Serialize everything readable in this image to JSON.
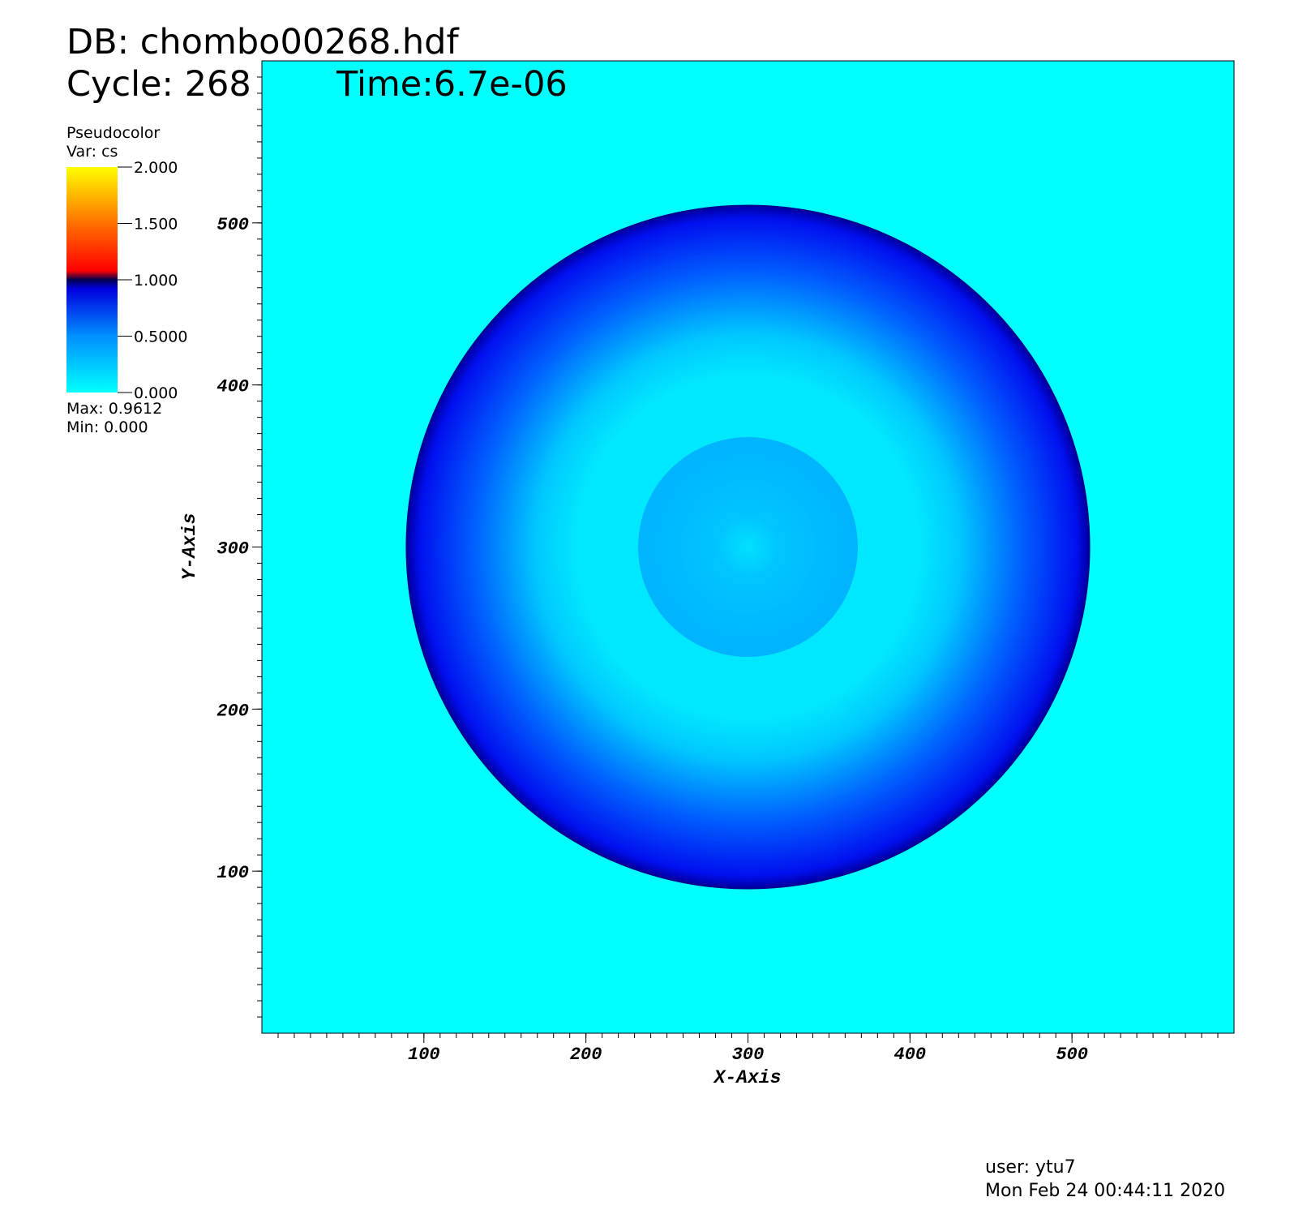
{
  "chart_data": {
    "type": "pseudocolor",
    "title": "DB: chombo00268.hdf",
    "cycle": "Cycle: 268",
    "time": "Time:6.7e-06",
    "legend": {
      "plot": "Pseudocolor",
      "var": "Var: cs",
      "lim": [
        0,
        2
      ],
      "ticks": [
        {
          "value": 0,
          "label": "0.000"
        },
        {
          "value": 0.5,
          "label": "0.5000"
        },
        {
          "value": 1,
          "label": "1.000"
        },
        {
          "value": 1.5,
          "label": "1.500"
        },
        {
          "value": 2,
          "label": "2.000"
        }
      ],
      "max": "Max:  0.9612",
      "min": "Min:  0.000"
    },
    "xlabel": "X-Axis",
    "ylabel": "Y-Axis",
    "xlim": [
      0,
      600
    ],
    "ylim": [
      0,
      600
    ],
    "xticks": [
      100,
      200,
      300,
      400,
      500
    ],
    "yticks": [
      100,
      200,
      300,
      400,
      500
    ],
    "minor_tick_step": 10,
    "user": "user: ytu7",
    "date": "Mon Feb 24 00:44:11 2020"
  }
}
